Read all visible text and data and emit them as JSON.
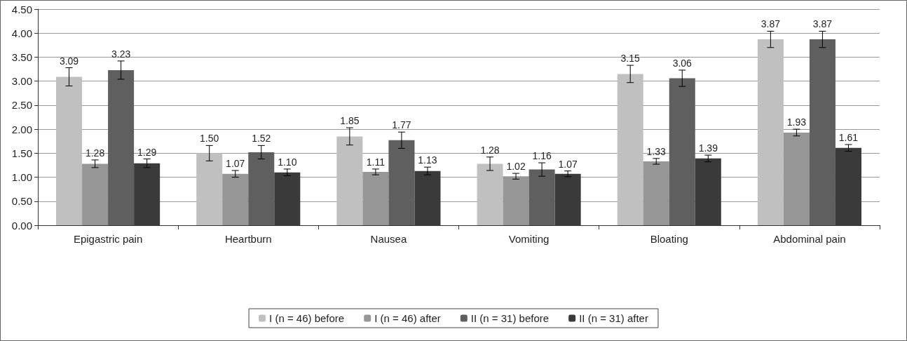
{
  "chart_data": {
    "type": "bar",
    "categories": [
      "Epigastric pain",
      "Heartburn",
      "Nausea",
      "Vomiting",
      "Bloating",
      "Abdominal pain"
    ],
    "series": [
      {
        "name": "I (n = 46) before",
        "color": "#c0c0c0",
        "values": [
          3.09,
          1.5,
          1.85,
          1.28,
          3.15,
          3.87
        ],
        "value_labels": [
          "3.09",
          "1.50",
          "1.85",
          "1.28",
          "3.15",
          "3.87"
        ],
        "errors": [
          0.19,
          0.16,
          0.18,
          0.14,
          0.18,
          0.17
        ]
      },
      {
        "name": "I (n = 46) after",
        "color": "#969696",
        "values": [
          1.28,
          1.07,
          1.11,
          1.02,
          1.33,
          1.93
        ],
        "value_labels": [
          "1.28",
          "1.07",
          "1.11",
          "1.02",
          "1.33",
          "1.93"
        ],
        "errors": [
          0.08,
          0.07,
          0.06,
          0.06,
          0.06,
          0.07
        ]
      },
      {
        "name": "II (n = 31) before",
        "color": "#5f5f5f",
        "values": [
          3.23,
          1.52,
          1.77,
          1.16,
          3.06,
          3.87
        ],
        "value_labels": [
          "3.23",
          "1.52",
          "1.77",
          "1.16",
          "3.06",
          "3.87"
        ],
        "errors": [
          0.19,
          0.14,
          0.17,
          0.14,
          0.17,
          0.17
        ]
      },
      {
        "name": "II (n = 31) after",
        "color": "#3a3a3a",
        "values": [
          1.29,
          1.1,
          1.13,
          1.07,
          1.39,
          1.61
        ],
        "value_labels": [
          "1.29",
          "1.10",
          "1.13",
          "1.07",
          "1.39",
          "1.61"
        ],
        "errors": [
          0.09,
          0.07,
          0.08,
          0.06,
          0.07,
          0.07
        ]
      }
    ],
    "ylim": [
      0,
      4.5
    ],
    "yticks": [
      {
        "value": 0,
        "label": "0.00"
      },
      {
        "value": 0.5,
        "label": "0.50"
      },
      {
        "value": 1,
        "label": "1.00"
      },
      {
        "value": 1.5,
        "label": "1.50"
      },
      {
        "value": 2,
        "label": "2.00"
      },
      {
        "value": 2.5,
        "label": "2.50"
      },
      {
        "value": 3,
        "label": "3.00"
      },
      {
        "value": 3.5,
        "label": "3.50"
      },
      {
        "value": 4,
        "label": "4.00"
      },
      {
        "value": 4.5,
        "label": "4.50"
      }
    ],
    "grid": "y",
    "legend": "bottom"
  }
}
